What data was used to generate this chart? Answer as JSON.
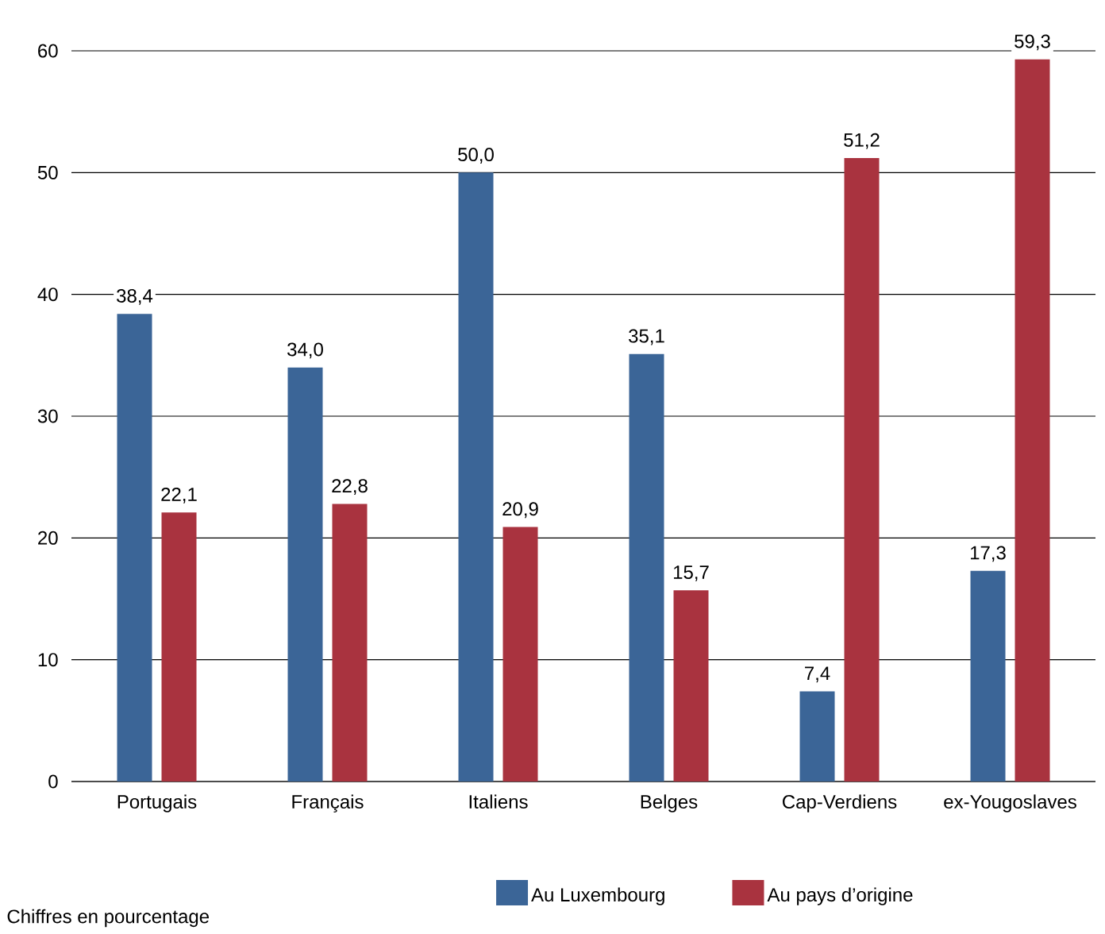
{
  "chart_data": {
    "type": "bar",
    "categories": [
      "Portugais",
      "Français",
      "Italiens",
      "Belges",
      "Cap-Verdiens",
      "ex-Yougoslaves"
    ],
    "series": [
      {
        "name": "Au Luxembourg",
        "color": "#3b6597",
        "values": [
          38.4,
          34.0,
          50.0,
          35.1,
          7.4,
          17.3
        ],
        "value_labels": [
          "38,4",
          "34,0",
          "50,0",
          "35,1",
          "7,4",
          "17,3"
        ]
      },
      {
        "name": "Au pays d’origine",
        "color": "#a9333f",
        "values": [
          22.1,
          22.8,
          20.9,
          15.7,
          51.2,
          59.3
        ],
        "value_labels": [
          "22,1",
          "22,8",
          "20,9",
          "15,7",
          "51,2",
          "59,3"
        ]
      }
    ],
    "ylim": [
      0,
      60
    ],
    "yticks": [
      0,
      10,
      20,
      30,
      40,
      50,
      60
    ],
    "grid": "y",
    "legend": "bottom",
    "annotations": [
      "Chiffres en pourcentage"
    ]
  }
}
